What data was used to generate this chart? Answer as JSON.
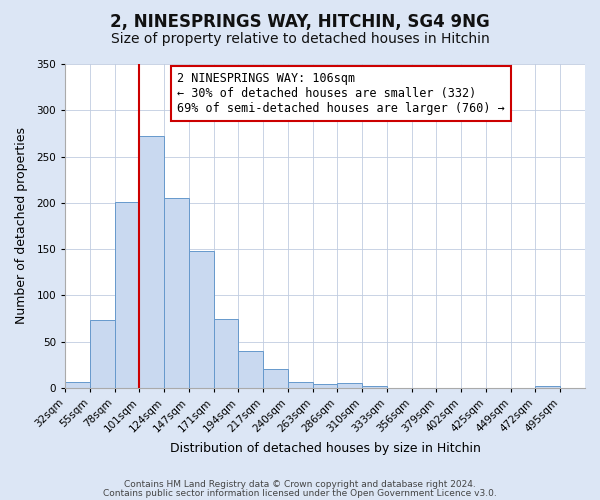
{
  "title": "2, NINESPRINGS WAY, HITCHIN, SG4 9NG",
  "subtitle": "Size of property relative to detached houses in Hitchin",
  "xlabel": "Distribution of detached houses by size in Hitchin",
  "ylabel": "Number of detached properties",
  "bar_labels": [
    "32sqm",
    "55sqm",
    "78sqm",
    "101sqm",
    "124sqm",
    "147sqm",
    "171sqm",
    "194sqm",
    "217sqm",
    "240sqm",
    "263sqm",
    "286sqm",
    "310sqm",
    "333sqm",
    "356sqm",
    "379sqm",
    "402sqm",
    "425sqm",
    "449sqm",
    "472sqm",
    "495sqm"
  ],
  "bar_values": [
    6,
    73,
    201,
    272,
    205,
    148,
    74,
    40,
    20,
    6,
    4,
    5,
    2,
    0,
    0,
    0,
    0,
    0,
    0,
    2,
    0
  ],
  "bar_color": "#c9d9f0",
  "bar_edgecolor": "#6699cc",
  "vline_x": 3,
  "vline_color": "#cc0000",
  "annotation_text": "2 NINESPRINGS WAY: 106sqm\n← 30% of detached houses are smaller (332)\n69% of semi-detached houses are larger (760) →",
  "annotation_box_edgecolor": "#cc0000",
  "ylim": [
    0,
    350
  ],
  "yticks": [
    0,
    50,
    100,
    150,
    200,
    250,
    300,
    350
  ],
  "footer1": "Contains HM Land Registry data © Crown copyright and database right 2024.",
  "footer2": "Contains public sector information licensed under the Open Government Licence v3.0.",
  "bg_color": "#dce6f5",
  "plot_bg_color": "#ffffff",
  "title_fontsize": 12,
  "subtitle_fontsize": 10,
  "xlabel_fontsize": 9,
  "ylabel_fontsize": 9,
  "tick_fontsize": 7.5,
  "annotation_fontsize": 8.5,
  "footer_fontsize": 6.5
}
